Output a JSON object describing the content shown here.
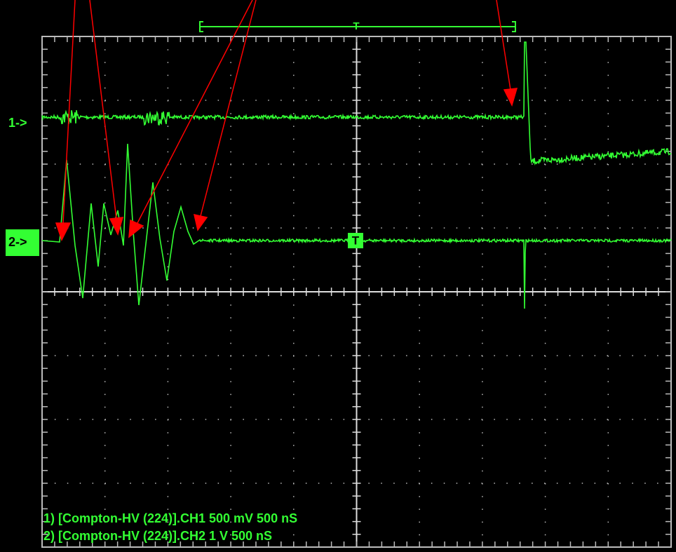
{
  "channel_markers": {
    "ch1": "1->",
    "ch2": "2->"
  },
  "trigger_markers": {
    "top": "T",
    "ch2": "T"
  },
  "status_lines": [
    "1) [Compton-HV (224)].CH1  500 mV   500 nS",
    "2) [Compton-HV (224)].CH2  1  V   500 nS"
  ]
}
